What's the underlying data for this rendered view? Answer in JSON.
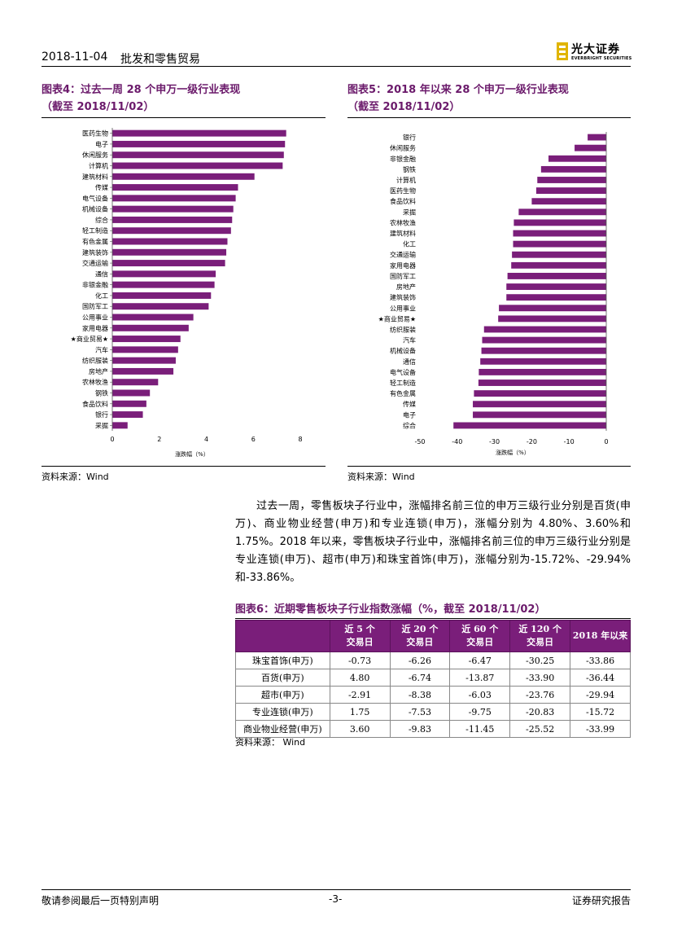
{
  "header": {
    "date": "2018-11-04",
    "title": "批发和零售贸易",
    "logo_cn": "光大证券",
    "logo_en": "EVERBRIGHT SECURITIES"
  },
  "figure4": {
    "title_line1": "图表4：过去一周 28 个申万一级行业表现",
    "title_line2": "（截至 2018/11/02）",
    "source": "资料来源：Wind"
  },
  "figure5": {
    "title_line1": "图表5：2018 年以来 28 个申万一级行业表现",
    "title_line2": "（截至 2018/11/02）",
    "source": "资料来源：Wind"
  },
  "chart_data": [
    {
      "type": "bar",
      "orientation": "horizontal",
      "title": "图表4：过去一周 28 个申万一级行业表现（截至 2018/11/02）",
      "xlabel": "涨跌幅（%）",
      "ylabel": "",
      "xlim": [
        0,
        8
      ],
      "xticks": [
        "0",
        "2",
        "4",
        "6",
        "8"
      ],
      "bar_color": "#7a1e7a",
      "categories": [
        "医药生物",
        "电子",
        "休闲服务",
        "计算机",
        "建筑材料",
        "传媒",
        "电气设备",
        "机械设备",
        "综合",
        "轻工制造",
        "有色金属",
        "建筑装饰",
        "交通运输",
        "通信",
        "非银金融",
        "化工",
        "国防军工",
        "公用事业",
        "家用电器",
        "★商业贸易★",
        "汽车",
        "纺织服装",
        "房地产",
        "农林牧渔",
        "钢铁",
        "食品饮料",
        "银行",
        "采掘"
      ],
      "values": [
        7.4,
        7.35,
        7.3,
        7.25,
        6.05,
        5.35,
        5.25,
        5.15,
        5.1,
        5.05,
        4.9,
        4.85,
        4.8,
        4.4,
        4.35,
        4.2,
        4.1,
        3.45,
        3.25,
        2.9,
        2.8,
        2.7,
        2.6,
        1.95,
        1.6,
        1.45,
        1.3,
        0.65
      ]
    },
    {
      "type": "bar",
      "orientation": "horizontal",
      "title": "图表5：2018 年以来 28 个申万一级行业表现（截至 2018/11/02）",
      "xlabel": "涨跌幅（%）",
      "ylabel": "",
      "xlim": [
        -50,
        0
      ],
      "xticks": [
        "-50",
        "-40",
        "-30",
        "-20",
        "-10",
        "0"
      ],
      "bar_color": "#7a1e7a",
      "categories": [
        "银行",
        "休闲服务",
        "非银金融",
        "钢铁",
        "计算机",
        "医药生物",
        "食品饮料",
        "采掘",
        "农林牧渔",
        "建筑材料",
        "化工",
        "交通运输",
        "家用电器",
        "国防军工",
        "房地产",
        "建筑装饰",
        "公用事业",
        "★商业贸易★",
        "纺织服装",
        "汽车",
        "机械设备",
        "通信",
        "电气设备",
        "轻工制造",
        "有色金属",
        "传媒",
        "电子",
        "综合"
      ],
      "values": [
        -5.0,
        -8.5,
        -15.5,
        -17.5,
        -18.5,
        -18.8,
        -20.0,
        -23.5,
        -24.8,
        -25.0,
        -25.0,
        -25.3,
        -25.5,
        -26.5,
        -26.8,
        -26.8,
        -28.8,
        -29.0,
        -32.8,
        -33.3,
        -33.5,
        -33.8,
        -34.2,
        -34.3,
        -35.5,
        -35.8,
        -35.8,
        -41.0
      ]
    }
  ],
  "body_text": "过去一周，零售板块子行业中，涨幅排名前三位的申万三级行业分别是百货(申万)、商业物业经营(申万)和专业连锁(申万)，涨幅分别为 4.80%、3.60%和 1.75%。2018 年以来，零售板块子行业中，涨幅排名前三位的申万三级行业分别是专业连锁(申万)、超市(申万)和珠宝首饰(申万)，涨幅分别为-15.72%、-29.94%和-33.86%。",
  "table6": {
    "title": "图表6：近期零售板块子行业指数涨幅（%，截至 2018/11/02）",
    "headers": [
      {
        "line1": "",
        "line2": ""
      },
      {
        "line1": "近 5 个",
        "line2": "交易日"
      },
      {
        "line1": "近 20 个",
        "line2": "交易日"
      },
      {
        "line1": "近 60 个",
        "line2": "交易日"
      },
      {
        "line1": "近 120 个",
        "line2": "交易日"
      },
      {
        "line1": "2018 年以来",
        "line2": ""
      }
    ],
    "rows": [
      [
        "珠宝首饰(申万)",
        "-0.73",
        "-6.26",
        "-6.47",
        "-30.25",
        "-33.86"
      ],
      [
        "百货(申万)",
        "4.80",
        "-6.74",
        "-13.87",
        "-33.90",
        "-36.44"
      ],
      [
        "超市(申万)",
        "-2.91",
        "-8.38",
        "-6.03",
        "-23.76",
        "-29.94"
      ],
      [
        "专业连锁(申万)",
        "1.75",
        "-7.53",
        "-9.75",
        "-20.83",
        "-15.72"
      ],
      [
        "商业物业经营(申万)",
        "3.60",
        "-9.83",
        "-11.45",
        "-25.52",
        "-33.99"
      ]
    ],
    "source": "资料来源：  Wind"
  },
  "footer": {
    "left": "敬请参阅最后一页特别声明",
    "page": "-3-",
    "right": "证券研究报告"
  }
}
